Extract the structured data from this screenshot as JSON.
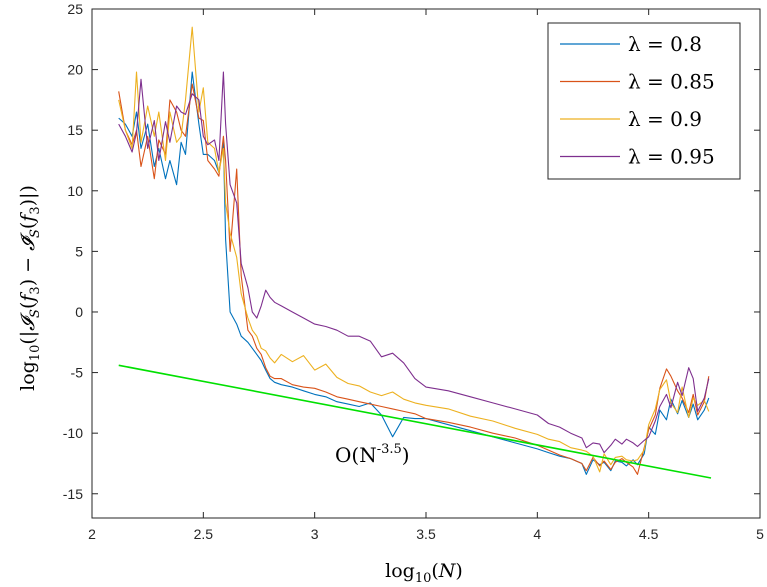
{
  "chart_data": {
    "type": "line",
    "xlabel": "log10(N)",
    "ylabel": "log10(|I_S(f_3) − Ĩ_S(f_3)|)",
    "xlim": [
      2,
      5
    ],
    "ylim": [
      -17,
      25
    ],
    "xticks": [
      "2",
      "2.5",
      "3",
      "3.5",
      "4",
      "4.5",
      "5"
    ],
    "yticks": [
      "-15",
      "-10",
      "-5",
      "0",
      "5",
      "10",
      "15",
      "20",
      "25"
    ],
    "grid": false,
    "legend_position": "top-right",
    "annotation": {
      "text": "O(N",
      "exponent": "-3.5",
      "suffix": ")",
      "x": 3.32,
      "y": -11.3
    },
    "series": [
      {
        "name": "λ = 0.8",
        "color": "#0072BD",
        "x": [
          2.12,
          2.15,
          2.18,
          2.2,
          2.22,
          2.25,
          2.28,
          2.3,
          2.33,
          2.35,
          2.38,
          2.4,
          2.42,
          2.45,
          2.48,
          2.5,
          2.52,
          2.55,
          2.57,
          2.59,
          2.6,
          2.62,
          2.65,
          2.67,
          2.7,
          2.72,
          2.74,
          2.76,
          2.78,
          2.8,
          2.82,
          2.85,
          2.9,
          2.95,
          3.0,
          3.05,
          3.1,
          3.15,
          3.2,
          3.25,
          3.3,
          3.35,
          3.4,
          3.45,
          3.5,
          3.6,
          3.7,
          3.8,
          3.9,
          4.0,
          4.05,
          4.1,
          4.15,
          4.2,
          4.22,
          4.25,
          4.28,
          4.3,
          4.33,
          4.35,
          4.38,
          4.4,
          4.43,
          4.45,
          4.48,
          4.5,
          4.53,
          4.55,
          4.58,
          4.6,
          4.63,
          4.65,
          4.68,
          4.7,
          4.72,
          4.75,
          4.77
        ],
        "y": [
          16,
          15.5,
          14.5,
          16.5,
          13.5,
          15.5,
          12,
          13.5,
          11,
          12.5,
          10.5,
          14,
          13,
          19.8,
          15.5,
          13,
          13,
          12.5,
          11.5,
          14,
          6,
          0,
          -1,
          -2,
          -2.5,
          -3,
          -3.5,
          -4,
          -4.8,
          -5.5,
          -5.8,
          -6,
          -6.2,
          -6.5,
          -6.8,
          -7,
          -7.4,
          -7.6,
          -7.8,
          -7.5,
          -8.5,
          -10.3,
          -8.7,
          -8.8,
          -8.8,
          -9.3,
          -9.8,
          -10.3,
          -10.8,
          -11.3,
          -11.6,
          -11.9,
          -12.1,
          -12.5,
          -13.4,
          -12.2,
          -12.6,
          -12.4,
          -13.1,
          -12.3,
          -12.4,
          -12.7,
          -12.2,
          -12.6,
          -11.7,
          -9.5,
          -10.1,
          -8.1,
          -8.9,
          -7.2,
          -8.4,
          -7.3,
          -8.7,
          -7.6,
          -8.9,
          -8.1,
          -7.1
        ]
      },
      {
        "name": "λ = 0.85",
        "color": "#D95319",
        "x": [
          2.12,
          2.15,
          2.18,
          2.2,
          2.22,
          2.25,
          2.28,
          2.3,
          2.33,
          2.35,
          2.38,
          2.4,
          2.42,
          2.45,
          2.48,
          2.5,
          2.52,
          2.55,
          2.57,
          2.59,
          2.6,
          2.62,
          2.65,
          2.67,
          2.7,
          2.72,
          2.74,
          2.76,
          2.78,
          2.8,
          2.82,
          2.85,
          2.9,
          2.95,
          3.0,
          3.05,
          3.1,
          3.15,
          3.2,
          3.25,
          3.3,
          3.35,
          3.4,
          3.45,
          3.5,
          3.6,
          3.7,
          3.8,
          3.9,
          4.0,
          4.05,
          4.1,
          4.15,
          4.2,
          4.22,
          4.25,
          4.28,
          4.3,
          4.33,
          4.35,
          4.38,
          4.4,
          4.43,
          4.45,
          4.48,
          4.5,
          4.53,
          4.55,
          4.58,
          4.6,
          4.63,
          4.65,
          4.68,
          4.7,
          4.72,
          4.75,
          4.77
        ],
        "y": [
          18.2,
          15,
          13.8,
          15,
          12,
          14.5,
          11,
          14.2,
          13,
          17.5,
          16.5,
          15,
          14.5,
          18.8,
          16,
          15.8,
          12.5,
          11.8,
          11.2,
          14.5,
          12.5,
          5,
          11.8,
          3,
          -1.5,
          -2,
          -3,
          -3.5,
          -4.6,
          -5.3,
          -5.5,
          -5.5,
          -6,
          -6.2,
          -6.3,
          -6.6,
          -7,
          -7.2,
          -7.4,
          -7.6,
          -7.8,
          -8.0,
          -8.2,
          -8.4,
          -8.8,
          -9.1,
          -9.5,
          -10,
          -10.4,
          -11,
          -11.4,
          -11.8,
          -12.1,
          -12.5,
          -13.1,
          -12,
          -12.7,
          -12.3,
          -13,
          -12.4,
          -12.1,
          -12.4,
          -12.8,
          -13.4,
          -11.2,
          -9.7,
          -8.5,
          -6.3,
          -4.7,
          -5.3,
          -6.5,
          -7.1,
          -8.3,
          -6.8,
          -8.5,
          -7.4,
          -5.3
        ]
      },
      {
        "name": "λ = 0.9",
        "color": "#EDB120",
        "x": [
          2.12,
          2.15,
          2.18,
          2.2,
          2.22,
          2.25,
          2.28,
          2.3,
          2.33,
          2.35,
          2.38,
          2.4,
          2.42,
          2.45,
          2.48,
          2.5,
          2.52,
          2.55,
          2.57,
          2.59,
          2.6,
          2.62,
          2.65,
          2.67,
          2.7,
          2.72,
          2.74,
          2.76,
          2.78,
          2.8,
          2.82,
          2.85,
          2.9,
          2.95,
          3.0,
          3.05,
          3.1,
          3.15,
          3.2,
          3.25,
          3.3,
          3.35,
          3.4,
          3.45,
          3.5,
          3.6,
          3.7,
          3.8,
          3.9,
          4.0,
          4.05,
          4.1,
          4.15,
          4.2,
          4.22,
          4.25,
          4.28,
          4.3,
          4.33,
          4.35,
          4.38,
          4.4,
          4.43,
          4.45,
          4.48,
          4.5,
          4.53,
          4.55,
          4.58,
          4.6,
          4.63,
          4.65,
          4.68,
          4.7,
          4.72,
          4.75,
          4.77
        ],
        "y": [
          17.5,
          15,
          13.5,
          19.8,
          14,
          17,
          14.5,
          16.5,
          12.5,
          16.5,
          14,
          14.5,
          17.5,
          23.5,
          16.5,
          18.5,
          14,
          13.5,
          11.5,
          13.5,
          9,
          6.5,
          4.5,
          1.5,
          -0.5,
          -1.5,
          -2,
          -3,
          -3.2,
          -3.8,
          -4.2,
          -3.5,
          -4.1,
          -3.6,
          -4.8,
          -4.3,
          -5.4,
          -5.9,
          -6.1,
          -6.6,
          -6.9,
          -6.6,
          -7.2,
          -7.5,
          -7.7,
          -8.0,
          -8.6,
          -9.0,
          -9.6,
          -10.1,
          -10.5,
          -10.7,
          -11.2,
          -11.4,
          -11.5,
          -11.9,
          -13.2,
          -11.7,
          -12.6,
          -12.0,
          -11.9,
          -12.2,
          -12.3,
          -12.2,
          -11.4,
          -9.3,
          -8.0,
          -6.4,
          -5.6,
          -7.5,
          -8.3,
          -6.2,
          -8.7,
          -7.1,
          -7.7,
          -7.3,
          -8.2
        ]
      },
      {
        "name": "λ = 0.95",
        "color": "#7E2F8E",
        "x": [
          2.12,
          2.15,
          2.18,
          2.2,
          2.22,
          2.25,
          2.28,
          2.3,
          2.33,
          2.35,
          2.38,
          2.4,
          2.42,
          2.45,
          2.48,
          2.5,
          2.52,
          2.55,
          2.57,
          2.59,
          2.6,
          2.62,
          2.65,
          2.67,
          2.7,
          2.72,
          2.74,
          2.76,
          2.78,
          2.8,
          2.82,
          2.85,
          2.9,
          2.95,
          3.0,
          3.05,
          3.1,
          3.15,
          3.2,
          3.25,
          3.3,
          3.35,
          3.4,
          3.45,
          3.5,
          3.6,
          3.7,
          3.8,
          3.9,
          4.0,
          4.05,
          4.1,
          4.15,
          4.2,
          4.22,
          4.25,
          4.28,
          4.3,
          4.33,
          4.35,
          4.38,
          4.4,
          4.43,
          4.45,
          4.48,
          4.5,
          4.53,
          4.55,
          4.58,
          4.6,
          4.63,
          4.65,
          4.68,
          4.7,
          4.72,
          4.75,
          4.77
        ],
        "y": [
          15.5,
          14.5,
          13.2,
          14.8,
          19.2,
          13.5,
          15.8,
          12.5,
          15.7,
          14,
          17,
          16.5,
          16.3,
          18,
          17.5,
          14.5,
          13.8,
          14.2,
          12.5,
          19.8,
          15.5,
          10.5,
          9,
          4,
          2,
          0,
          -0.5,
          0.5,
          1.8,
          1.2,
          0.8,
          0.5,
          0,
          -0.5,
          -1,
          -1.2,
          -1.5,
          -2,
          -2,
          -2.4,
          -3.7,
          -3.4,
          -4.2,
          -5.5,
          -6.2,
          -6.5,
          -7,
          -7.5,
          -8,
          -8.5,
          -9.2,
          -9.5,
          -10,
          -10.4,
          -11.2,
          -10.8,
          -10.9,
          -11.6,
          -11.0,
          -10.5,
          -10.9,
          -10.5,
          -10.8,
          -11.1,
          -10.6,
          -10.3,
          -9.0,
          -7.8,
          -6.8,
          -7.9,
          -5.8,
          -6.9,
          -4.6,
          -5.5,
          -8.2,
          -7.1,
          -5.5
        ]
      }
    ],
    "reference_line": {
      "color": "#00E000",
      "x": [
        2.12,
        4.78
      ],
      "y": [
        -4.4,
        -13.7
      ]
    }
  }
}
